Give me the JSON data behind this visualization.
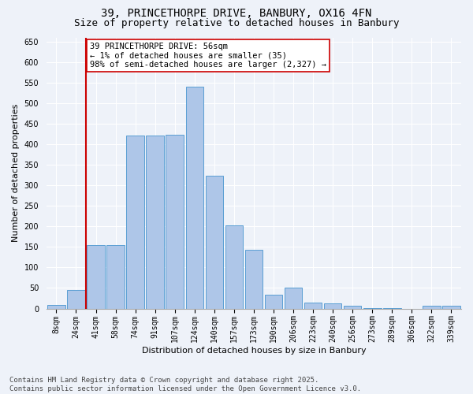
{
  "title_line1": "39, PRINCETHORPE DRIVE, BANBURY, OX16 4FN",
  "title_line2": "Size of property relative to detached houses in Banbury",
  "xlabel": "Distribution of detached houses by size in Banbury",
  "ylabel": "Number of detached properties",
  "categories": [
    "8sqm",
    "24sqm",
    "41sqm",
    "58sqm",
    "74sqm",
    "91sqm",
    "107sqm",
    "124sqm",
    "140sqm",
    "157sqm",
    "173sqm",
    "190sqm",
    "206sqm",
    "223sqm",
    "240sqm",
    "256sqm",
    "273sqm",
    "289sqm",
    "306sqm",
    "322sqm",
    "339sqm"
  ],
  "values": [
    8,
    46,
    155,
    155,
    422,
    422,
    424,
    541,
    323,
    203,
    143,
    33,
    50,
    14,
    12,
    7,
    2,
    1,
    0,
    6,
    6
  ],
  "bar_color": "#aec6e8",
  "bar_edge_color": "#5a9fd4",
  "vline_color": "#cc0000",
  "vline_x": 1.5,
  "annotation_text": "39 PRINCETHORPE DRIVE: 56sqm\n← 1% of detached houses are smaller (35)\n98% of semi-detached houses are larger (2,327) →",
  "annotation_box_color": "#ffffff",
  "annotation_box_edge": "#cc0000",
  "ylim": [
    0,
    660
  ],
  "yticks": [
    0,
    50,
    100,
    150,
    200,
    250,
    300,
    350,
    400,
    450,
    500,
    550,
    600,
    650
  ],
  "bg_color": "#eef2f9",
  "grid_color": "#ffffff",
  "footer": "Contains HM Land Registry data © Crown copyright and database right 2025.\nContains public sector information licensed under the Open Government Licence v3.0.",
  "title_fontsize": 10,
  "subtitle_fontsize": 9,
  "axis_label_fontsize": 8,
  "tick_fontsize": 7,
  "footer_fontsize": 6.5,
  "annotation_fontsize": 7.5
}
